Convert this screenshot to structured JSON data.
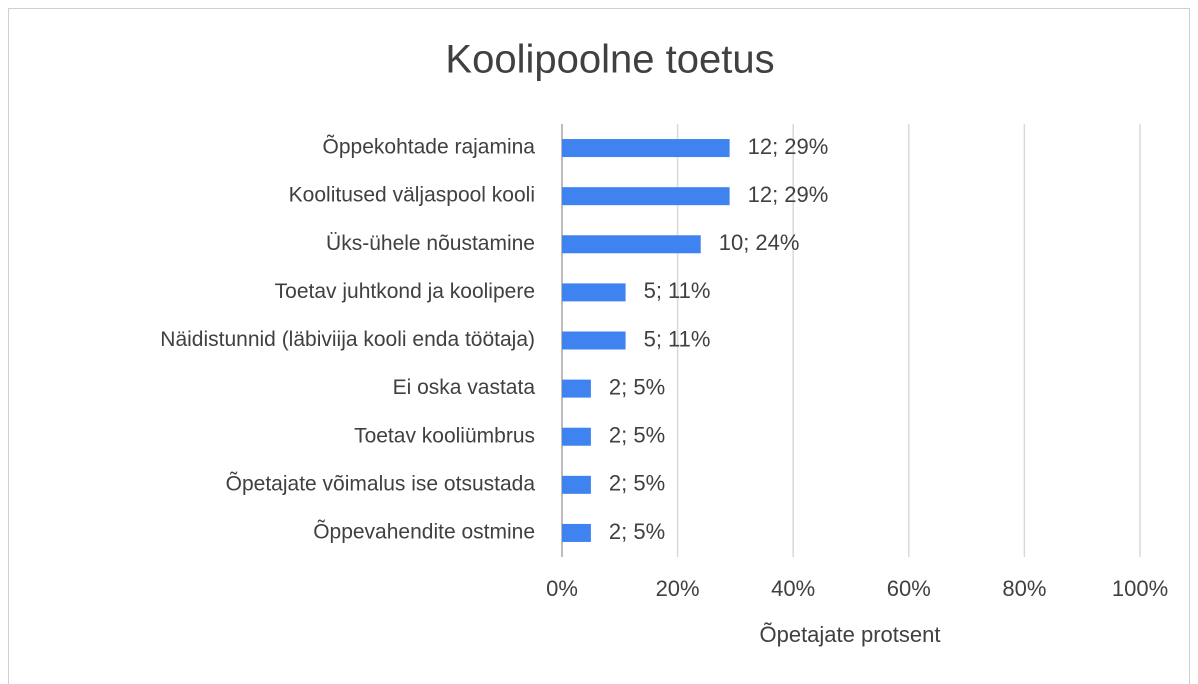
{
  "chart_data": {
    "type": "barh",
    "title": "Koolipoolne toetus",
    "categories": [
      "Õppekohtade rajamina",
      "Koolitused väljaspool kooli",
      "Üks-ühele nõustamine",
      "Toetav juhtkond ja koolipere",
      "Näidistunnid (läbiviija kooli enda töötaja)",
      "Ei oska vastata",
      "Toetav kooliümbrus",
      "Õpetajate võimalus ise otsustada",
      "Õppevahendite ostmine"
    ],
    "values": [
      29,
      29,
      24,
      11,
      11,
      5,
      5,
      5,
      5
    ],
    "value_labels": [
      "12; 29%",
      "12; 29%",
      "10; 24%",
      "5; 11%",
      "5; 11%",
      "2; 5%",
      "2; 5%",
      "2; 5%",
      "2; 5%"
    ],
    "color": "#3f83f0",
    "xlabel": "Õpetajate protsent",
    "xlim": [
      0,
      100
    ],
    "xticks": [
      {
        "value": 0,
        "label": "0%"
      },
      {
        "value": 20,
        "label": "20%"
      },
      {
        "value": 40,
        "label": "40%"
      },
      {
        "value": 60,
        "label": "60%"
      },
      {
        "value": 80,
        "label": "80%"
      },
      {
        "value": 100,
        "label": "100%"
      }
    ],
    "grid": true
  }
}
